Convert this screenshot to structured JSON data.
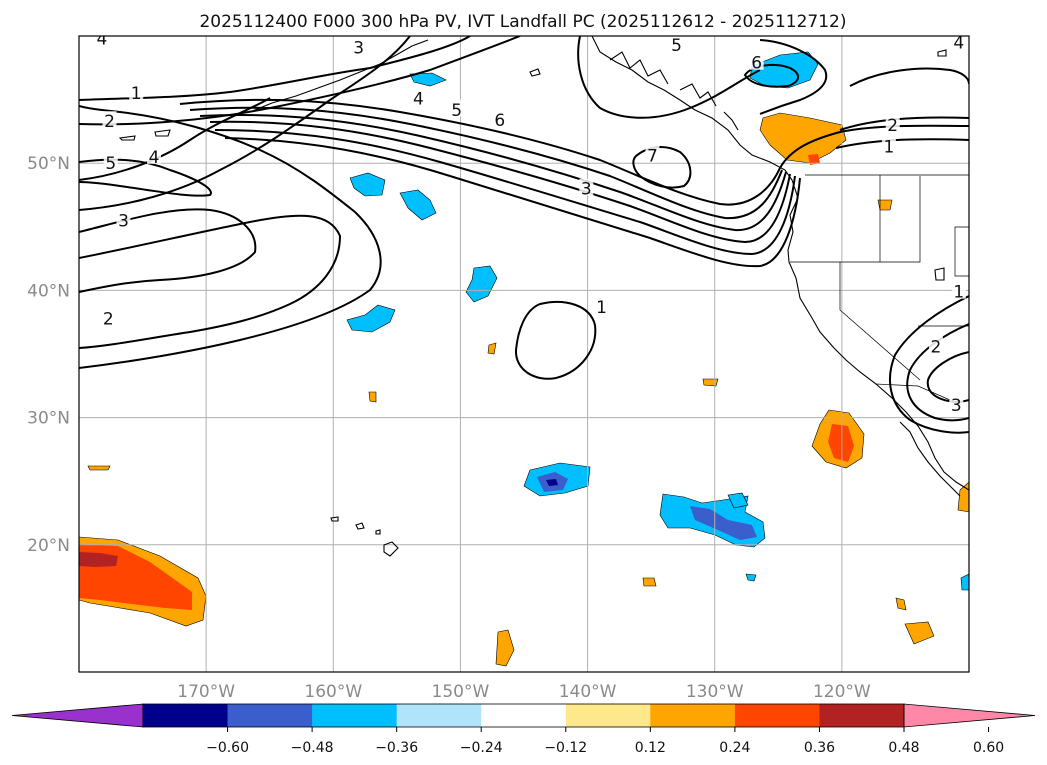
{
  "chart_data": {
    "type": "map",
    "title": "2025112400 F000 300 hPa PV, IVT Landfall PC (2025112612 - 2025112712)",
    "lon_range": [
      -180,
      -110
    ],
    "lat_range": [
      10,
      60
    ],
    "lon_ticks": [
      {
        "value": -170,
        "label": "170°W"
      },
      {
        "value": -160,
        "label": "160°W"
      },
      {
        "value": -150,
        "label": "150°W"
      },
      {
        "value": -140,
        "label": "140°W"
      },
      {
        "value": -130,
        "label": "130°W"
      },
      {
        "value": -120,
        "label": "120°W"
      }
    ],
    "lat_ticks": [
      {
        "value": 50,
        "label": "50°N"
      },
      {
        "value": 40,
        "label": "40°N"
      },
      {
        "value": 30,
        "label": "30°N"
      },
      {
        "value": 20,
        "label": "20°N"
      }
    ],
    "pv_contours": {
      "levels": [
        1,
        2,
        3,
        4,
        5,
        6,
        7
      ],
      "labels": [
        {
          "text": "4",
          "lon": -178.2,
          "lat": 59.8
        },
        {
          "text": "3",
          "lon": -158.0,
          "lat": 59.1
        },
        {
          "text": "5",
          "lon": -133.0,
          "lat": 59.3
        },
        {
          "text": "4",
          "lon": -110.8,
          "lat": 59.5
        },
        {
          "text": "6",
          "lon": -126.7,
          "lat": 57.9
        },
        {
          "text": "1",
          "lon": -175.5,
          "lat": 55.5
        },
        {
          "text": "4",
          "lon": -153.3,
          "lat": 55.1
        },
        {
          "text": "5",
          "lon": -150.3,
          "lat": 54.2
        },
        {
          "text": "6",
          "lon": -146.9,
          "lat": 53.4
        },
        {
          "text": "2",
          "lon": -177.6,
          "lat": 53.3
        },
        {
          "text": "2",
          "lon": -116.0,
          "lat": 53.0
        },
        {
          "text": "1",
          "lon": -116.3,
          "lat": 51.3
        },
        {
          "text": "4",
          "lon": -174.1,
          "lat": 50.5
        },
        {
          "text": "5",
          "lon": -177.5,
          "lat": 50.0
        },
        {
          "text": "7",
          "lon": -134.9,
          "lat": 50.6
        },
        {
          "text": "3",
          "lon": -140.1,
          "lat": 48.0
        },
        {
          "text": "3",
          "lon": -176.5,
          "lat": 45.5
        },
        {
          "text": "1",
          "lon": -138.9,
          "lat": 38.7
        },
        {
          "text": "2",
          "lon": -177.7,
          "lat": 37.8
        },
        {
          "text": "1",
          "lon": -110.8,
          "lat": 39.9
        },
        {
          "text": "2",
          "lon": -112.6,
          "lat": 35.6
        },
        {
          "text": "3",
          "lon": -111.0,
          "lat": 31.0
        }
      ]
    },
    "ivt_pc_shading": {
      "colorbar": {
        "ticks": [
          "−0.60",
          "−0.48",
          "−0.36",
          "−0.24",
          "−0.12",
          "0.12",
          "0.24",
          "0.36",
          "0.48",
          "0.60"
        ],
        "colors": [
          "#9932cc",
          "#00008b",
          "#3a5fcd",
          "#00bfff",
          "#afe4fa",
          "#ffffff",
          "#fde98c",
          "#ffa500",
          "#ff4500",
          "#b22222",
          "#ff88a8"
        ]
      }
    }
  }
}
